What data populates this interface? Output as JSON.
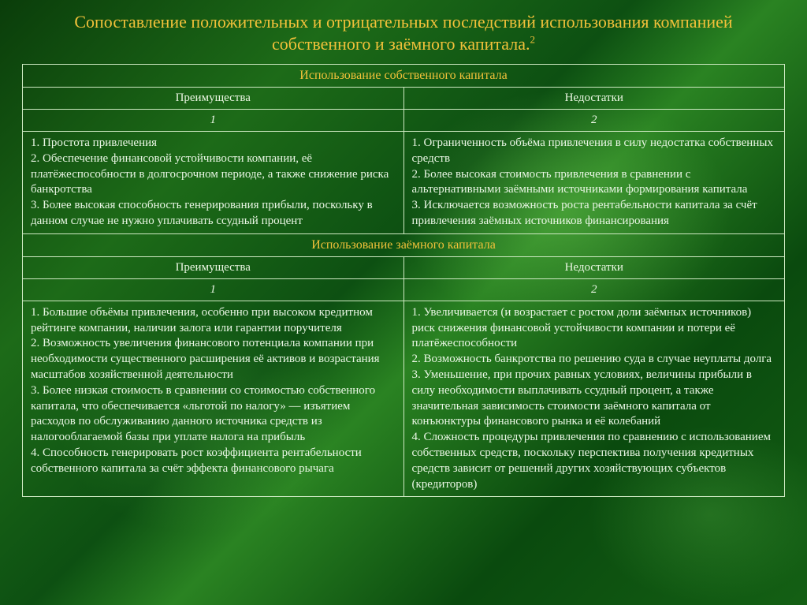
{
  "colors": {
    "accent": "#f2c13a",
    "text": "#e9f6e4",
    "border": "#cfeac3"
  },
  "title_line1": "Сопоставление положительных и отрицательных последствий использования компанией",
  "title_line2": "собственного и заёмного капитала.",
  "title_footnote": "2",
  "section1": {
    "heading": "Использование собственного капитала",
    "col1_label": "Преимущества",
    "col2_label": "Недостатки",
    "col1_num": "1",
    "col2_num": "2",
    "advantages": "1. Простота привлечения\n2. Обеспечение финансовой устойчивости компании, её платёжеспособности в долгосрочном периоде, а также снижение риска банкротства\n3. Более высокая способность генерирования прибыли, поскольку в данном случае не нужно уплачивать ссудный процент",
    "disadvantages": "1. Ограниченность объёма привлечения в силу недостатка собственных средств\n2. Более высокая стоимость привлечения в сравнении с альтернативными заёмными источниками формирования капитала\n3. Исключается возможность роста рентабельности капитала за счёт привлечения заёмных источников финансирования"
  },
  "section2": {
    "heading": "Использование заёмного капитала",
    "col1_label": "Преимущества",
    "col2_label": "Недостатки",
    "col1_num": "1",
    "col2_num": "2",
    "advantages": "1. Большие объёмы привлечения, особенно при высоком кредитном рейтинге компании, наличии залога или гарантии поручителя\n2. Возможность увеличения финансового потенциала компании при необходимости существенного расширения её активов и возрастания масштабов хозяйственной деятельности\n3. Более низкая стоимость в сравнении со стоимостью собственного капитала, что обеспечивается «льготой по налогу» — изъятием расходов по обслуживанию данного источника средств из налогооблагаемой базы при уплате налога на прибыль\n4. Способность генерировать рост коэффициента рентабельности собственного капитала за счёт эффекта финансового рычага",
    "disadvantages": "1. Увеличивается (и возрастает с ростом доли заёмных источников) риск снижения финансовой устойчивости компании и потери её платёжеспособности\n2. Возможность банкротства по решению суда в случае неуплаты долга\n3. Уменьшение, при прочих равных условиях, величины прибыли в силу необходимости выплачивать ссудный процент, а также значительная зависимость стоимости заёмного капитала от конъюнктуры финансового рынка и её колебаний\n4. Сложность процедуры привлечения по сравнению с использованием собственных средств, поскольку перспектива получения кредитных средств зависит от решений других хозяйствующих субъектов (кредиторов)"
  }
}
